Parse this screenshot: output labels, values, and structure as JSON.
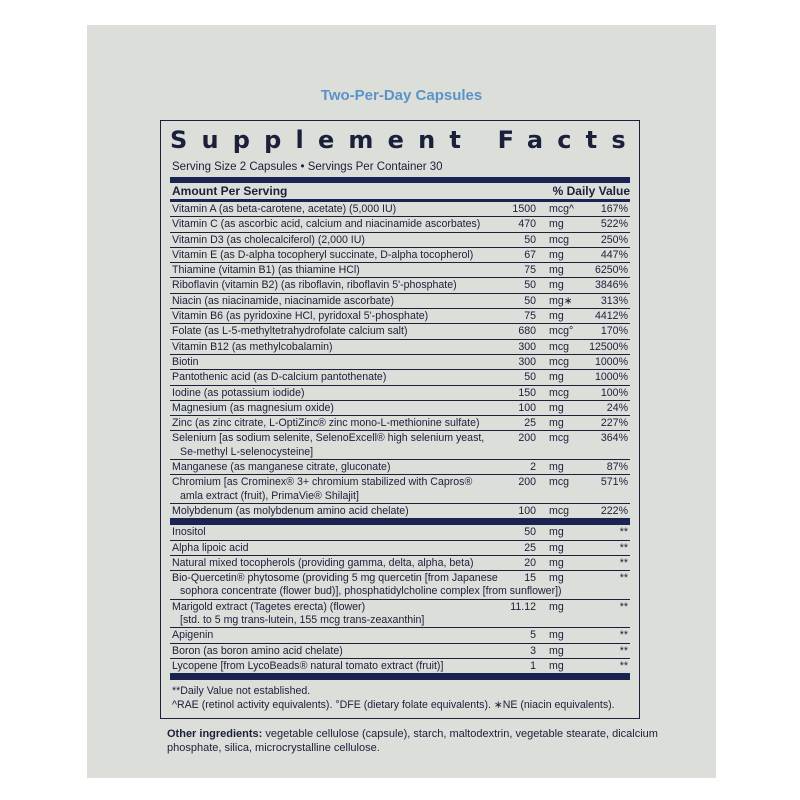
{
  "subtitle": "Two-Per-Day Capsules",
  "title": "Supplement Facts",
  "serving": "Serving Size 2 Capsules  •  Servings Per Container 30",
  "header": {
    "amount": "Amount Per Serving",
    "dv": "% Daily Value"
  },
  "colors": {
    "subtitle": "#5b93c8",
    "bars": "#1b2350",
    "background": "#dcdeda"
  },
  "section1": [
    {
      "name": "Vitamin A (as beta-carotene, acetate) (5,000 IU)",
      "amount": "1500",
      "unit": "mcg^",
      "dv": "167%"
    },
    {
      "name": "Vitamin C (as ascorbic acid, calcium and niacinamide ascorbates)",
      "amount": "470",
      "unit": "mg",
      "dv": "522%"
    },
    {
      "name": "Vitamin D3 (as cholecalciferol) (2,000 IU)",
      "amount": "50",
      "unit": "mcg",
      "dv": "250%"
    },
    {
      "name": "Vitamin E (as D-alpha tocopheryl succinate, D-alpha tocopherol)",
      "amount": "67",
      "unit": "mg",
      "dv": "447%"
    },
    {
      "name": "Thiamine (vitamin B1) (as thiamine HCl)",
      "amount": "75",
      "unit": "mg",
      "dv": "6250%"
    },
    {
      "name": "Riboflavin (vitamin B2) (as riboflavin, riboflavin 5'-phosphate)",
      "amount": "50",
      "unit": "mg",
      "dv": "3846%"
    },
    {
      "name": "Niacin (as niacinamide, niacinamide ascorbate)",
      "amount": "50",
      "unit": "mg∗",
      "dv": "313%"
    },
    {
      "name": "Vitamin B6 (as pyridoxine HCl, pyridoxal 5'-phosphate)",
      "amount": "75",
      "unit": "mg",
      "dv": "4412%"
    },
    {
      "name": "Folate (as L-5-methyltetrahydrofolate calcium salt)",
      "amount": "680",
      "unit": "mcg°",
      "dv": "170%"
    },
    {
      "name": "Vitamin B12 (as methylcobalamin)",
      "amount": "300",
      "unit": "mcg",
      "dv": "12500%"
    },
    {
      "name": "Biotin",
      "amount": "300",
      "unit": "mcg",
      "dv": "1000%"
    },
    {
      "name": "Pantothenic acid (as D-calcium pantothenate)",
      "amount": "50",
      "unit": "mg",
      "dv": "1000%"
    },
    {
      "name": "Iodine (as potassium iodide)",
      "amount": "150",
      "unit": "mcg",
      "dv": "100%"
    },
    {
      "name": "Magnesium (as magnesium oxide)",
      "amount": "100",
      "unit": "mg",
      "dv": "24%"
    },
    {
      "name": "Zinc (as zinc citrate, L-OptiZinc® zinc mono-L-methionine sulfate)",
      "amount": "25",
      "unit": "mg",
      "dv": "227%"
    },
    {
      "name": "Selenium [as sodium selenite, SelenoExcell® high selenium yeast,",
      "name2": "Se-methyl L-selenocysteine]",
      "amount": "200",
      "unit": "mcg",
      "dv": "364%"
    },
    {
      "name": "Manganese (as manganese citrate, gluconate)",
      "amount": "2",
      "unit": "mg",
      "dv": "87%"
    },
    {
      "name": "Chromium [as Crominex® 3+ chromium stabilized with Capros®",
      "name2": "amla extract (fruit), PrimaVie® Shilajit]",
      "amount": "200",
      "unit": "mcg",
      "dv": "571%"
    },
    {
      "name": "Molybdenum (as molybdenum amino acid chelate)",
      "amount": "100",
      "unit": "mcg",
      "dv": "222%"
    }
  ],
  "section2": [
    {
      "name": "Inositol",
      "amount": "50",
      "unit": "mg",
      "dv": "**"
    },
    {
      "name": "Alpha lipoic acid",
      "amount": "25",
      "unit": "mg",
      "dv": "**"
    },
    {
      "name": "Natural mixed tocopherols (providing gamma, delta, alpha, beta)",
      "amount": "20",
      "unit": "mg",
      "dv": "**"
    },
    {
      "name": "Bio-Quercetin® phytosome (providing 5 mg quercetin [from Japanese",
      "name2": "sophora concentrate (flower bud)], phosphatidylcholine complex [from sunflower])",
      "amount": "15",
      "unit": "mg",
      "dv": "**"
    },
    {
      "name": "Marigold extract (Tagetes erecta) (flower)",
      "name2": "[std. to 5 mg trans-lutein, 155 mcg trans-zeaxanthin]",
      "amount": "11.12",
      "unit": "mg",
      "dv": "**"
    },
    {
      "name": "Apigenin",
      "amount": "5",
      "unit": "mg",
      "dv": "**"
    },
    {
      "name": "Boron (as boron amino acid chelate)",
      "amount": "3",
      "unit": "mg",
      "dv": "**"
    },
    {
      "name": "Lycopene [from LycoBeads® natural tomato extract (fruit)]",
      "amount": "1",
      "unit": "mg",
      "dv": "**"
    }
  ],
  "footnotes": [
    "**Daily Value not established.",
    "^RAE (retinol activity equivalents). °DFE (dietary folate equivalents). ∗NE (niacin equivalents)."
  ],
  "other": {
    "label": "Other ingredients:",
    "text": " vegetable cellulose (capsule), starch, maltodextrin, vegetable stearate, dicalcium phosphate, silica, microcrystalline cellulose."
  }
}
